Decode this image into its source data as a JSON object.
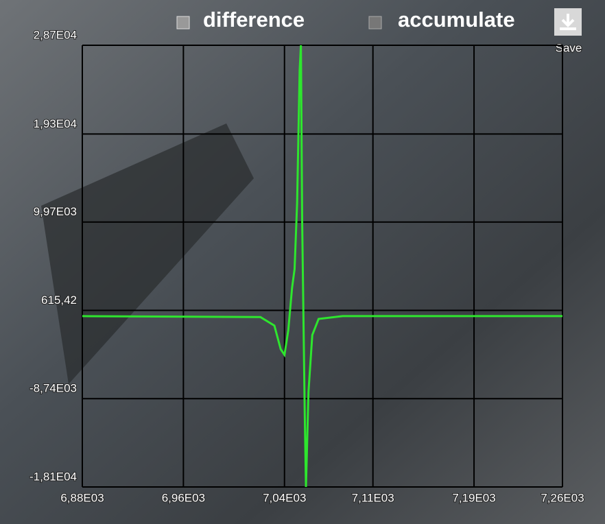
{
  "chart_data": {
    "type": "line",
    "toggles": [
      {
        "label": "difference",
        "checked": true
      },
      {
        "label": "accumulate",
        "checked": false
      }
    ],
    "button": "Save",
    "x": [
      6880,
      7021,
      7032,
      7037,
      7040,
      7043,
      7046,
      7048,
      7050,
      7052,
      7053,
      7054,
      7056,
      7057,
      7059,
      7062,
      7067,
      7086,
      7260
    ],
    "series": [
      {
        "color": "#2ee62e",
        "values": [
          0,
          -100,
          -1000,
          -3500,
          -4100,
          -1500,
          3000,
          5000,
          12000,
          26000,
          28700,
          10000,
          -10000,
          -18100,
          -8000,
          -2000,
          -300,
          0,
          0
        ]
      }
    ],
    "xlim": [
      6880,
      7260
    ],
    "xticks": [
      {
        "value": 6880,
        "label": "6,88E03"
      },
      {
        "value": 6960,
        "label": "6,96E03"
      },
      {
        "value": 7040,
        "label": "7,04E03"
      },
      {
        "value": 7110,
        "label": "7,11E03"
      },
      {
        "value": 7190,
        "label": "7,19E03"
      },
      {
        "value": 7260,
        "label": "7,26E03"
      }
    ],
    "ylim": [
      -18100,
      28700
    ],
    "yticks": [
      {
        "value": 28700,
        "label": "2,87E04"
      },
      {
        "value": 19300,
        "label": "1,93E04"
      },
      {
        "value": 9970,
        "label": "9,97E03"
      },
      {
        "value": 615.42,
        "label": "615,42"
      },
      {
        "value": -8740,
        "label": "-8,74E03"
      },
      {
        "value": -18100,
        "label": "-1,81E04"
      }
    ],
    "grid": true
  }
}
